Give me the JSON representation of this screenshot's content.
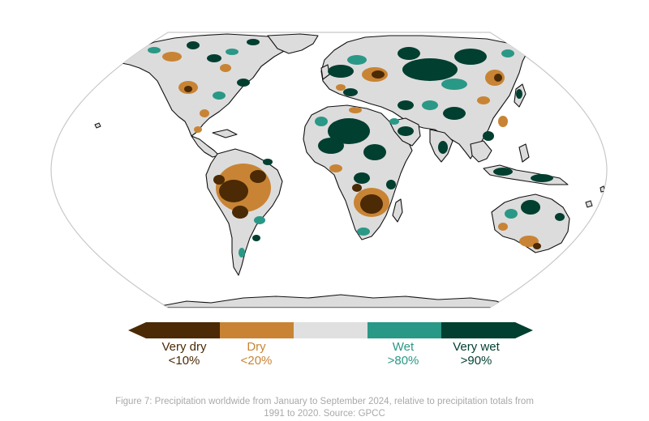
{
  "colors": {
    "very_dry": "#4b2a05",
    "dry": "#c88434",
    "normal": "#e0e0e0",
    "wet": "#2a9886",
    "very_wet": "#013f30",
    "ocean": "#ffffff",
    "land": "#dcdcdc",
    "outline": "#111111",
    "frame": "#c8c8c8"
  },
  "legend": {
    "items": [
      {
        "key": "very_dry",
        "name": "Very dry",
        "range": "<10%",
        "text_color": "#4b2a05"
      },
      {
        "key": "dry",
        "name": "Dry",
        "range": "<20%",
        "text_color": "#c88434"
      },
      {
        "key": "normal",
        "name": "",
        "range": "",
        "text_color": "#777777"
      },
      {
        "key": "wet",
        "name": "Wet",
        "range": ">80%",
        "text_color": "#2a9886"
      },
      {
        "key": "very_wet",
        "name": "Very wet",
        "range": ">90%",
        "text_color": "#013f30"
      }
    ]
  },
  "caption": {
    "line1": "Figure 7: Precipitation worldwide from January to September 2024, relative to precipitation totals from",
    "line2": "1991 to 2020. Source: GPCC"
  }
}
